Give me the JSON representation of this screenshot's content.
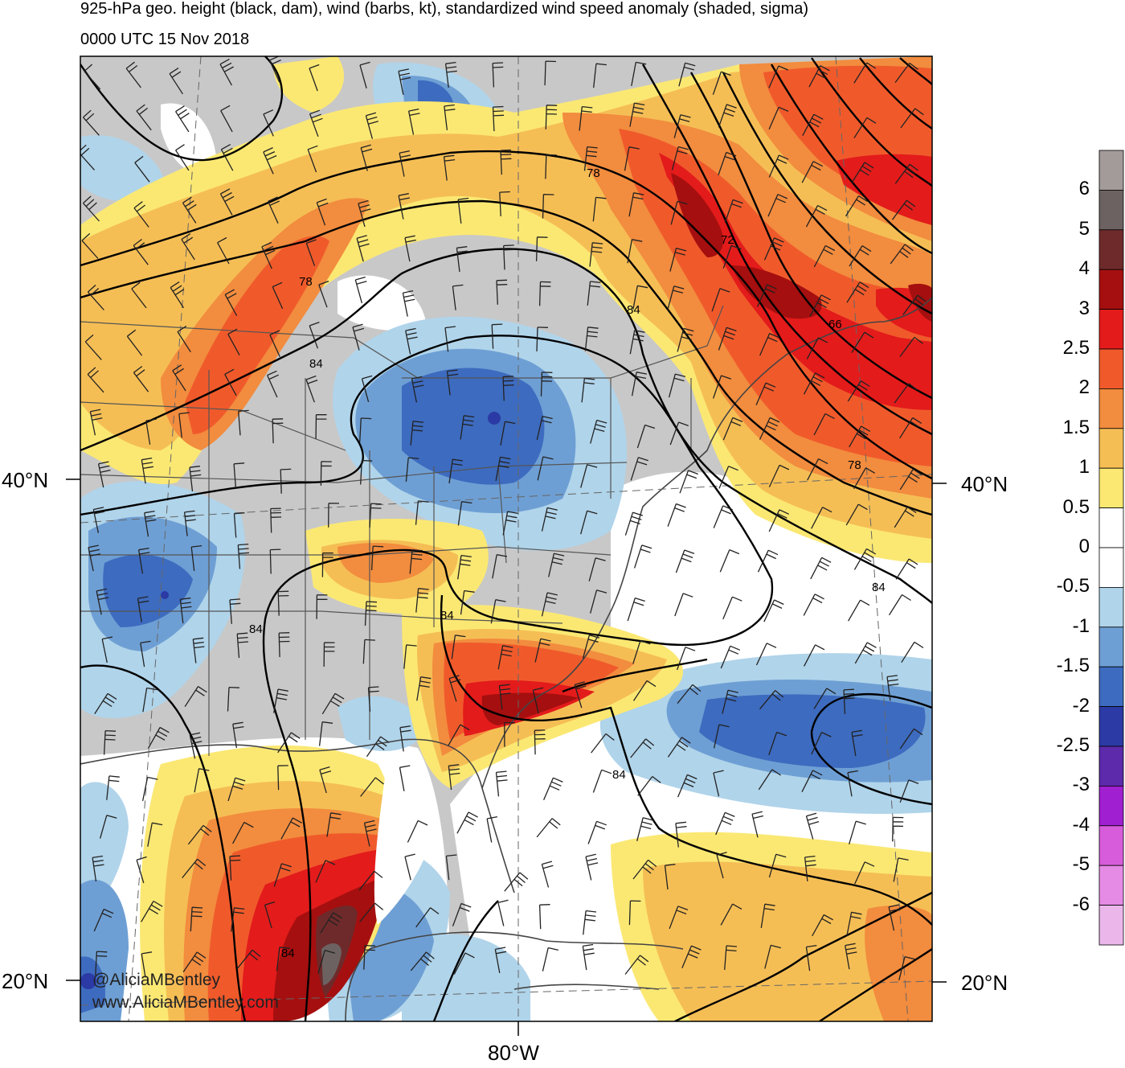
{
  "title_line1": "925-hPa geo. height (black, dam), wind (barbs, kt), standardized wind speed anomaly (shaded, sigma)",
  "title_line2": "0000 UTC 15 Nov 2018",
  "credits": {
    "handle": "@AliciaMBentley",
    "website": "www.AliciaMBentley.com"
  },
  "axes": {
    "lat_left_40": "40°N",
    "lat_left_20": "20°N",
    "lat_right_40": "40°N",
    "lat_right_20": "20°N",
    "lon_bottom": "80°W"
  },
  "contour_labels": [
    "78",
    "72",
    "66",
    "78",
    "84",
    "78",
    "84",
    "84",
    "84",
    "84",
    "84",
    "84"
  ],
  "colorbar": {
    "labels": [
      "6",
      "5",
      "4",
      "3",
      "2.5",
      "2",
      "1.5",
      "1",
      "0.5",
      "0",
      "-0.5",
      "-1",
      "-1.5",
      "-2",
      "-2.5",
      "-3",
      "-4",
      "-5",
      "-6"
    ],
    "colors": [
      "#a39a9a",
      "#6c6262",
      "#6e2a2a",
      "#a50f0f",
      "#e31b1b",
      "#f05a2b",
      "#f28c3e",
      "#f5be55",
      "#fbe873",
      "#ffffff",
      "#ffffff",
      "#b0d4ea",
      "#6e9fd4",
      "#3d6bbf",
      "#2b3aa4",
      "#5c2aab",
      "#a01fd0",
      "#d75cdb",
      "#e58ae5",
      "#ebb7eb"
    ]
  },
  "palette": {
    "land": "#c8c8c8",
    "ocean_neutral": "#ffffff",
    "contour": "#000000"
  }
}
